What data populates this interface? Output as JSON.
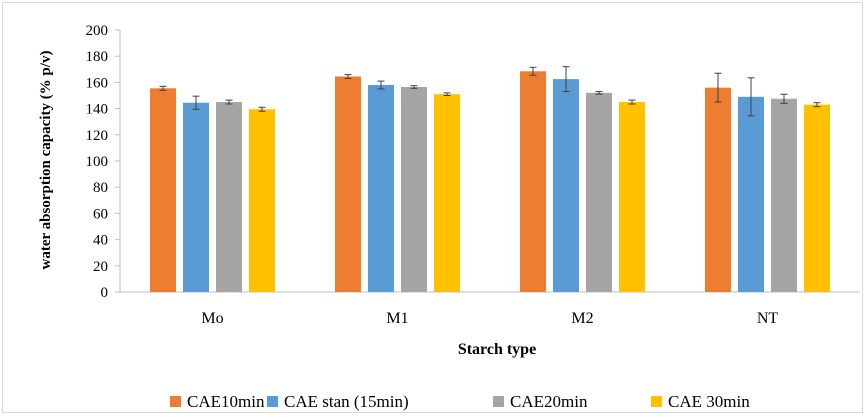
{
  "chart_data": {
    "type": "bar",
    "title": "",
    "xlabel": "Starch type",
    "ylabel": "water absorption capacity (% p/v)",
    "ylim": [
      0,
      200
    ],
    "yticks": [
      0,
      20,
      40,
      60,
      80,
      100,
      120,
      140,
      160,
      180,
      200
    ],
    "grid": false,
    "legend_position": "bottom",
    "categories": [
      "Mo",
      "M1",
      "M2",
      "NT"
    ],
    "series": [
      {
        "name": "CAE10min",
        "color": "#ED7D31",
        "values": [
          155.5,
          164.5,
          168.5,
          156
        ],
        "errors": [
          1.5,
          1.5,
          3,
          11
        ]
      },
      {
        "name": "CAE stan (15min)",
        "color": "#5B9BD5",
        "values": [
          144.5,
          158,
          162.5,
          149
        ],
        "errors": [
          5,
          3,
          9.5,
          14.5
        ]
      },
      {
        "name": "CAE20min",
        "color": "#A5A5A5",
        "values": [
          145,
          156.5,
          152,
          147.5
        ],
        "errors": [
          1.5,
          1,
          1,
          3.5
        ]
      },
      {
        "name": "CAE 30min",
        "color": "#FFC000",
        "values": [
          139.5,
          151,
          145,
          143
        ],
        "errors": [
          1.5,
          1,
          1.5,
          1.5
        ]
      }
    ]
  }
}
